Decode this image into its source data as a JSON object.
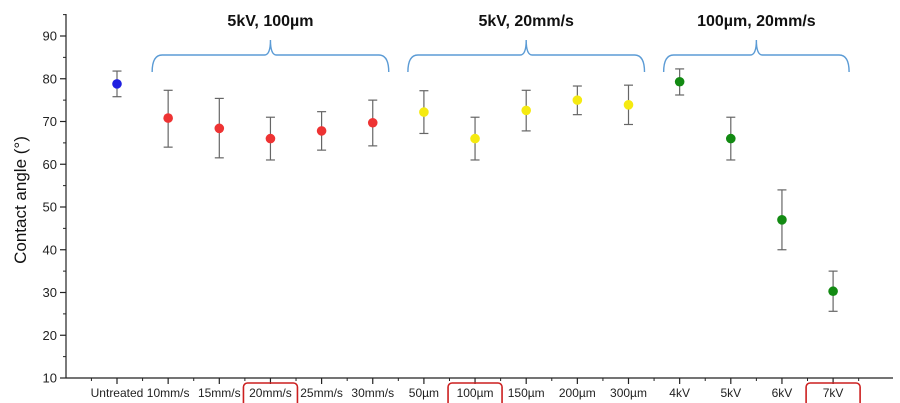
{
  "chart_data": {
    "type": "scatter",
    "title": "",
    "xlabel": "",
    "ylabel": "Contact angle (°)",
    "ylim": [
      10,
      95
    ],
    "yticks": [
      10,
      20,
      30,
      40,
      50,
      60,
      70,
      80,
      90
    ],
    "grid": false,
    "categories": [
      "Untreated",
      "10mm/s",
      "15mm/s",
      "20mm/s",
      "25mm/s",
      "30mm/s",
      "50µm",
      "100µm",
      "150µm",
      "200µm",
      "300µm",
      "4kV",
      "5kV",
      "6kV",
      "7kV"
    ],
    "series": [
      {
        "color": "#1f1fe0",
        "points": [
          {
            "x": "Untreated",
            "y": 78.8,
            "err_low": 75.8,
            "err_high": 81.8
          }
        ]
      },
      {
        "color": "#ee3333",
        "points": [
          {
            "x": "10mm/s",
            "y": 70.8,
            "err_low": 64.0,
            "err_high": 77.3
          },
          {
            "x": "15mm/s",
            "y": 68.4,
            "err_low": 61.5,
            "err_high": 75.4
          },
          {
            "x": "20mm/s",
            "y": 66.0,
            "err_low": 61.0,
            "err_high": 71.0
          },
          {
            "x": "25mm/s",
            "y": 67.8,
            "err_low": 63.3,
            "err_high": 72.3
          },
          {
            "x": "30mm/s",
            "y": 69.7,
            "err_low": 64.3,
            "err_high": 75.0
          }
        ]
      },
      {
        "color": "#f5ea10",
        "points": [
          {
            "x": "50µm",
            "y": 72.2,
            "err_low": 67.2,
            "err_high": 77.2
          },
          {
            "x": "100µm",
            "y": 66.0,
            "err_low": 61.0,
            "err_high": 71.0
          },
          {
            "x": "150µm",
            "y": 72.6,
            "err_low": 67.8,
            "err_high": 77.3
          },
          {
            "x": "200µm",
            "y": 75.0,
            "err_low": 71.6,
            "err_high": 78.3
          },
          {
            "x": "300µm",
            "y": 73.9,
            "err_low": 69.3,
            "err_high": 78.5
          }
        ]
      },
      {
        "color": "#128a12",
        "points": [
          {
            "x": "4kV",
            "y": 79.3,
            "err_low": 76.2,
            "err_high": 82.3
          },
          {
            "x": "5kV",
            "y": 66.0,
            "err_low": 61.0,
            "err_high": 71.0
          },
          {
            "x": "6kV",
            "y": 47.0,
            "err_low": 40.0,
            "err_high": 54.0
          },
          {
            "x": "7kV",
            "y": 30.3,
            "err_low": 25.6,
            "err_high": 35.0
          }
        ]
      }
    ],
    "groups": [
      {
        "label": "5kV, 100µm",
        "from": "10mm/s",
        "to": "30mm/s"
      },
      {
        "label": "5kV, 20mm/s",
        "from": "50µm",
        "to": "300µm"
      },
      {
        "label": "100µm, 20mm/s",
        "from": "4kV",
        "to": "7kV"
      }
    ],
    "highlighted_categories": [
      "20mm/s",
      "100µm",
      "7kV"
    ],
    "colors": {
      "brace": "#5b9bd5",
      "highlight_box": "#cc1f1f",
      "error_bar": "#666666",
      "axis": "#222222"
    }
  }
}
